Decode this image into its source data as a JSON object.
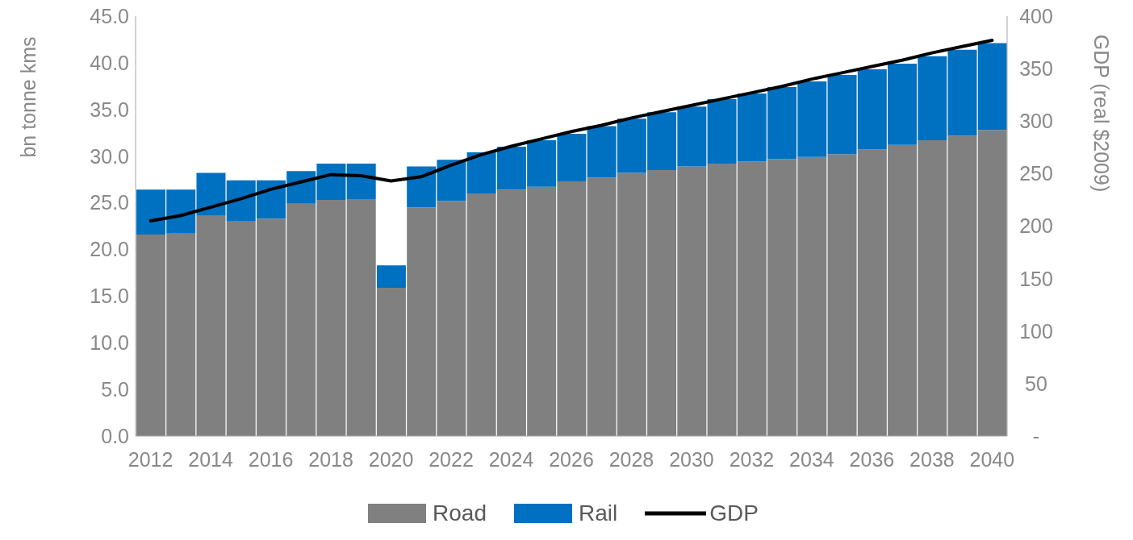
{
  "chart_data": {
    "type": "bar",
    "stacked": true,
    "ylabel": "bn tonne kms",
    "y2label": "GDP (real $2009)",
    "categories": [
      "2012",
      null,
      "2014",
      null,
      "2016",
      null,
      "2018",
      null,
      "2020",
      null,
      "2022",
      null,
      "2024",
      null,
      "2026",
      null,
      "2028",
      null,
      "2030",
      null,
      "2032",
      null,
      "2034",
      null,
      "2036",
      null,
      "2038",
      null,
      "2040"
    ],
    "series": [
      {
        "name": "Road",
        "color": "#808080",
        "values": [
          21.6,
          21.7,
          23.6,
          23.0,
          23.3,
          24.9,
          25.3,
          25.4,
          15.9,
          24.5,
          25.2,
          26.0,
          26.4,
          26.7,
          27.3,
          27.7,
          28.2,
          28.5,
          28.9,
          29.2,
          29.4,
          29.7,
          29.9,
          30.2,
          30.7,
          31.2,
          31.7,
          32.2,
          32.8
        ]
      },
      {
        "name": "Rail",
        "color": "#0070c0",
        "values": [
          4.8,
          4.7,
          4.6,
          4.4,
          4.1,
          3.5,
          3.9,
          3.8,
          2.4,
          4.4,
          4.4,
          4.4,
          4.6,
          5.0,
          5.1,
          5.5,
          5.8,
          6.2,
          6.4,
          6.9,
          7.3,
          7.7,
          8.1,
          8.5,
          8.6,
          8.7,
          9.0,
          9.2,
          9.3
        ]
      },
      {
        "name": "GDP",
        "type": "line",
        "axis": "y2",
        "color": "#000000",
        "values": [
          205,
          210,
          218,
          226,
          235,
          242,
          249,
          248,
          243,
          247,
          258,
          268,
          276,
          283,
          290,
          296,
          303,
          309,
          315,
          321,
          327,
          333,
          340,
          346,
          352,
          358,
          365,
          371,
          377
        ]
      }
    ],
    "ylim": [
      0,
      45
    ],
    "yticks": [
      {
        "value": 0,
        "label": "0.0"
      },
      {
        "value": 5,
        "label": "5.0"
      },
      {
        "value": 10,
        "label": "10.0"
      },
      {
        "value": 15,
        "label": "15.0"
      },
      {
        "value": 20,
        "label": "20.0"
      },
      {
        "value": 25,
        "label": "25.0"
      },
      {
        "value": 30,
        "label": "30.0"
      },
      {
        "value": 35,
        "label": "35.0"
      },
      {
        "value": 40,
        "label": "40.0"
      },
      {
        "value": 45,
        "label": "45.0"
      }
    ],
    "y2lim": [
      0,
      400
    ],
    "y2ticks": [
      {
        "value": 0,
        "label": "-"
      },
      50,
      100,
      150,
      200,
      250,
      300,
      350,
      400
    ],
    "grid": false,
    "legend": "bottom",
    "marker": "none",
    "line_style": "solid"
  }
}
